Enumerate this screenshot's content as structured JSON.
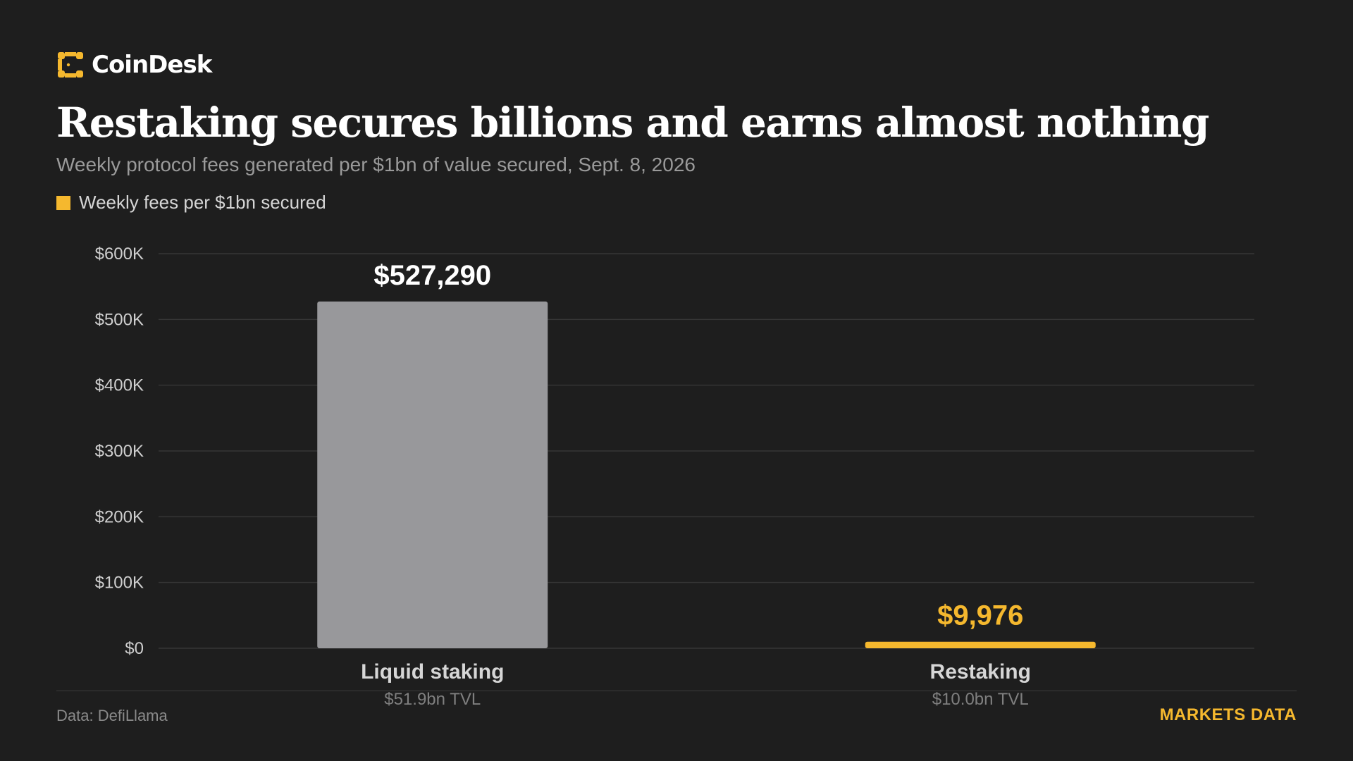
{
  "brand": {
    "name": "CoinDesk",
    "accent_color": "#f5b82e",
    "icon": "coindesk-logo-icon"
  },
  "header": {
    "title": "Restaking secures billions and earns almost nothing",
    "subtitle": "Weekly protocol fees generated per $1bn of value secured, Sept. 8, 2026"
  },
  "legend": {
    "label": "Weekly fees per $1bn secured",
    "color": "#f5b82e",
    "placement": "top-left"
  },
  "chart_data": {
    "type": "bar",
    "categories": [
      "Liquid staking",
      "Restaking"
    ],
    "category_sublabels": [
      "$51.9bn TVL",
      "$10.0bn TVL"
    ],
    "series": [
      {
        "name": "Weekly fees per $1bn secured",
        "values": [
          527290,
          9976
        ],
        "value_labels": [
          "$527,290",
          "$9,976"
        ],
        "colors": [
          "#98989b",
          "#f5b82e"
        ],
        "label_colors": [
          "#ffffff",
          "#f5b82e"
        ]
      }
    ],
    "ylim": [
      0,
      600000
    ],
    "yticks": [
      0,
      100000,
      200000,
      300000,
      400000,
      500000,
      600000
    ],
    "ytick_labels": [
      "$0",
      "$100K",
      "$200K",
      "$300K",
      "$400K",
      "$500K",
      "$600K"
    ],
    "grid": true,
    "title": "Restaking secures billions and earns almost nothing",
    "xlabel": "",
    "ylabel": ""
  },
  "footer": {
    "source": "Data: DefiLlama",
    "tag": "MARKETS DATA",
    "tag_color": "#f5b82e"
  }
}
